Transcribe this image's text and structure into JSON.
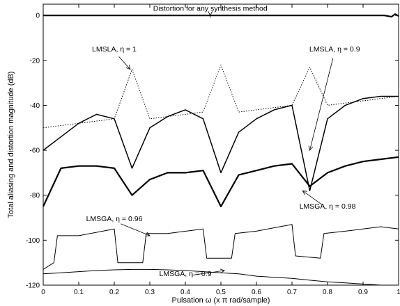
{
  "chart_data": {
    "type": "line",
    "title": "",
    "xlabel": "Pulsation ω (x π rad/sample)",
    "ylabel": "Total aliasing and distortion magnitude (dB)",
    "xlim": [
      0,
      1
    ],
    "ylim": [
      -120,
      5
    ],
    "xticks": [
      "0",
      "0.1",
      "0.2",
      "0.3",
      "0.4",
      "0.5",
      "0.6",
      "0.7",
      "0.8",
      "0.9",
      "1"
    ],
    "yticks": [
      "0",
      "-20",
      "-40",
      "-60",
      "-80",
      "-100",
      "-120"
    ],
    "grid": false,
    "legend": "none",
    "series": [
      {
        "name": "Distortion for any synthesis method",
        "style": "solid-thick",
        "x": [
          0,
          0.5,
          0.96,
          0.98,
          0.99,
          1.0
        ],
        "y": [
          0,
          0,
          0,
          -0.6,
          0.6,
          -0.3
        ]
      },
      {
        "name": "LMSLA, η = 1",
        "style": "dotted",
        "x": [
          0,
          0.05,
          0.1,
          0.15,
          0.2,
          0.25,
          0.3,
          0.35,
          0.4,
          0.45,
          0.5,
          0.55,
          0.6,
          0.65,
          0.7,
          0.75,
          0.8,
          0.85,
          0.9,
          0.95,
          1.0
        ],
        "y": [
          -50,
          -49,
          -48,
          -47,
          -46,
          -24,
          -46,
          -45,
          -44,
          -43,
          -22,
          -43,
          -42,
          -41,
          -40,
          -23,
          -40,
          -39,
          -38,
          -37,
          -36
        ]
      },
      {
        "name": "LMSLA, η = 0.9",
        "style": "solid-medium",
        "x": [
          0,
          0.05,
          0.1,
          0.15,
          0.2,
          0.25,
          0.3,
          0.35,
          0.4,
          0.45,
          0.5,
          0.55,
          0.6,
          0.65,
          0.7,
          0.75,
          0.8,
          0.85,
          0.9,
          0.95,
          1.0
        ],
        "y": [
          -60,
          -54,
          -48,
          -44,
          -46,
          -68,
          -50,
          -45,
          -42,
          -46,
          -70,
          -52,
          -46,
          -42,
          -40,
          -78,
          -46,
          -40,
          -37,
          -36,
          -36
        ]
      },
      {
        "name": "LMSGA, η = 0.98",
        "style": "solid-thick",
        "x": [
          0,
          0.05,
          0.1,
          0.15,
          0.2,
          0.25,
          0.3,
          0.35,
          0.4,
          0.45,
          0.5,
          0.55,
          0.6,
          0.65,
          0.7,
          0.75,
          0.8,
          0.85,
          0.9,
          0.95,
          1.0
        ],
        "y": [
          -85,
          -68,
          -67,
          -67,
          -68,
          -80,
          -73,
          -70,
          -70,
          -69,
          -85,
          -71,
          -69,
          -67,
          -66,
          -76,
          -70,
          -67,
          -65,
          -64,
          -63
        ]
      },
      {
        "name": "LMSGA, η = 0.96",
        "style": "solid-thin",
        "x": [
          0,
          0.03,
          0.04,
          0.1,
          0.2,
          0.21,
          0.28,
          0.29,
          0.35,
          0.45,
          0.46,
          0.53,
          0.54,
          0.6,
          0.7,
          0.71,
          0.78,
          0.79,
          0.85,
          0.95,
          1.0
        ],
        "y": [
          -113,
          -110,
          -98,
          -98,
          -95,
          -110,
          -110,
          -97,
          -97,
          -95,
          -108,
          -108,
          -97,
          -96,
          -93,
          -107,
          -108,
          -97,
          -96,
          -94,
          -95
        ]
      },
      {
        "name": "LMSGA, η = 0.9",
        "style": "solid-thin",
        "x": [
          0,
          0.05,
          0.1,
          0.15,
          0.2,
          0.25,
          0.3,
          0.35,
          0.4,
          0.45,
          0.5,
          0.55,
          0.6,
          0.65,
          0.7,
          0.75,
          0.8,
          0.85,
          0.9,
          0.95,
          1.0
        ],
        "y": [
          -115,
          -114.5,
          -114,
          -113.5,
          -113.2,
          -113,
          -113,
          -113.2,
          -113.5,
          -114,
          -114.5,
          -115,
          -116,
          -116.5,
          -117,
          -117.8,
          -118.5,
          -119,
          -119.5,
          -120,
          -120
        ]
      }
    ],
    "annotations": [
      {
        "text": "Distortion for any synthesis method",
        "x": 0.47,
        "y": 2,
        "target_x": 0.47,
        "target_y": 0
      },
      {
        "text": "LMSLA, η = 1",
        "x": 0.2,
        "y": -16,
        "target_x": 0.245,
        "target_y": -24
      },
      {
        "text": "LMSLA, η = 0.9",
        "x": 0.82,
        "y": -16,
        "target_x": 0.75,
        "target_y": -60
      },
      {
        "text": "LMSGA, η = 0.98",
        "x": 0.8,
        "y": -86,
        "target_x": 0.73,
        "target_y": -78
      },
      {
        "text": "LMSGA, η = 0.96",
        "x": 0.2,
        "y": -91.5,
        "target_x": 0.3,
        "target_y": -98
      },
      {
        "text": "LMSGA, η = 0.9",
        "x": 0.4,
        "y": -116,
        "target_x": 0.51,
        "target_y": -113.5
      }
    ]
  }
}
